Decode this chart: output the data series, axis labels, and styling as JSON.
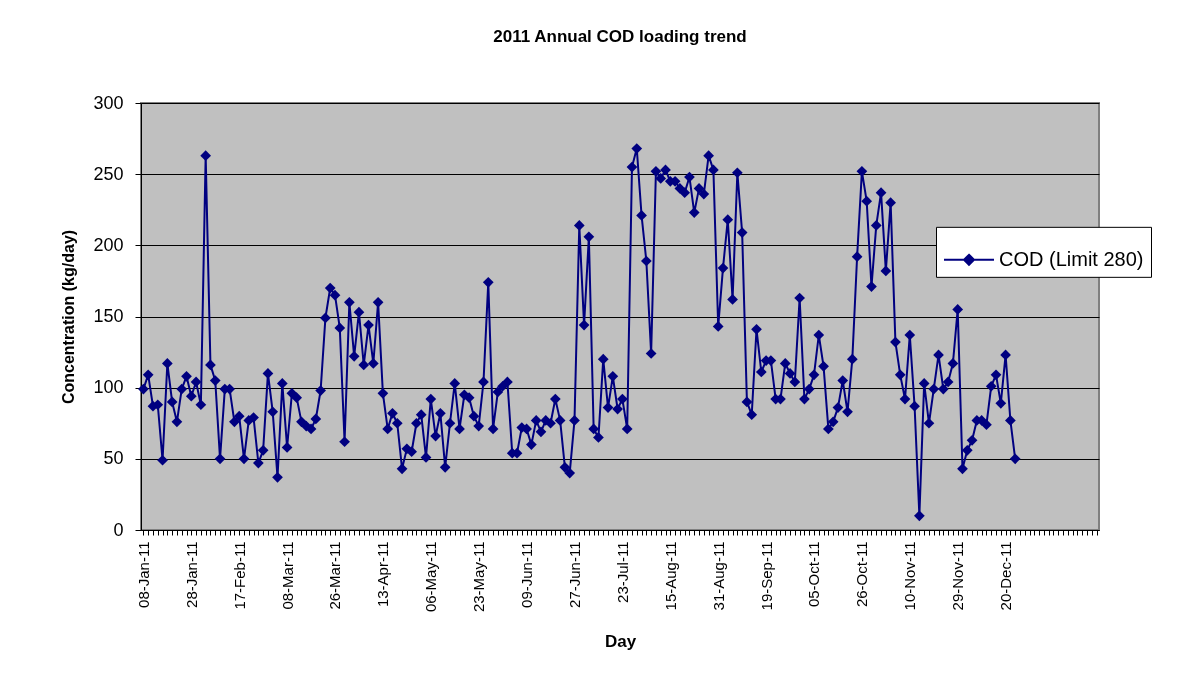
{
  "chart_data": {
    "type": "line",
    "title": "2011 Annual COD loading trend",
    "xlabel": "Day",
    "ylabel": "Concentration (kg/day)",
    "categories": [
      "08-Jan-11",
      null,
      null,
      null,
      null,
      null,
      null,
      null,
      null,
      null,
      "28-Jan-11",
      null,
      null,
      null,
      null,
      null,
      null,
      null,
      null,
      null,
      "17-Feb-11",
      null,
      null,
      null,
      null,
      null,
      null,
      null,
      null,
      null,
      "08-Mar-11",
      null,
      null,
      null,
      null,
      null,
      null,
      null,
      null,
      null,
      "26-Mar-11",
      null,
      null,
      null,
      null,
      null,
      null,
      null,
      null,
      null,
      "13-Apr-11",
      null,
      null,
      null,
      null,
      null,
      null,
      null,
      null,
      null,
      "06-May-11",
      null,
      null,
      null,
      null,
      null,
      null,
      null,
      null,
      null,
      "23-May-11",
      null,
      null,
      null,
      null,
      null,
      null,
      null,
      null,
      null,
      "09-Jun-11",
      null,
      null,
      null,
      null,
      null,
      null,
      null,
      null,
      null,
      "27-Jun-11",
      null,
      null,
      null,
      null,
      null,
      null,
      null,
      null,
      null,
      "23-Jul-11",
      null,
      null,
      null,
      null,
      null,
      null,
      null,
      null,
      null,
      "15-Aug-11",
      null,
      null,
      null,
      null,
      null,
      null,
      null,
      null,
      null,
      "31-Aug-11",
      null,
      null,
      null,
      null,
      null,
      null,
      null,
      null,
      null,
      "19-Sep-11",
      null,
      null,
      null,
      null,
      null,
      null,
      null,
      null,
      null,
      "05-Oct-11",
      null,
      null,
      null,
      null,
      null,
      null,
      null,
      null,
      null,
      "26-Oct-11",
      null,
      null,
      null,
      null,
      null,
      null,
      null,
      null,
      null,
      "10-Nov-11",
      null,
      null,
      null,
      null,
      null,
      null,
      null,
      null,
      null,
      "29-Nov-11",
      null,
      null,
      null,
      null,
      null,
      null,
      null,
      null,
      null,
      "20-Dec-11",
      null,
      null,
      null,
      null,
      null,
      null,
      null,
      null,
      null,
      null,
      null,
      null,
      null,
      null,
      null,
      null,
      null,
      null,
      null
    ],
    "series": [
      {
        "name": "COD (Limit 280)",
        "color": "#000080",
        "values": [
          99,
          109,
          87,
          88,
          49,
          117,
          90,
          76,
          99,
          108,
          94,
          104,
          88,
          263,
          116,
          105,
          50,
          99,
          99,
          76,
          80,
          50,
          77,
          79,
          47,
          56,
          110,
          83,
          37,
          103,
          58,
          96,
          93,
          76,
          73,
          71,
          78,
          98,
          149,
          170,
          165,
          142,
          62,
          160,
          122,
          153,
          116,
          144,
          117,
          160,
          96,
          71,
          82,
          75,
          43,
          57,
          55,
          75,
          81,
          51,
          92,
          66,
          82,
          44,
          75,
          103,
          71,
          95,
          93,
          80,
          73,
          104,
          174,
          71,
          97,
          101,
          104,
          54,
          54,
          72,
          71,
          60,
          77,
          69,
          77,
          75,
          92,
          77,
          44,
          40,
          77,
          214,
          144,
          206,
          71,
          65,
          120,
          86,
          108,
          85,
          92,
          71,
          255,
          268,
          221,
          189,
          124,
          252,
          247,
          253,
          245,
          245,
          240,
          237,
          248,
          223,
          240,
          236,
          263,
          253,
          143,
          184,
          218,
          162,
          251,
          209,
          90,
          81,
          141,
          111,
          119,
          119,
          92,
          92,
          117,
          110,
          104,
          163,
          92,
          99,
          109,
          137,
          115,
          71,
          76,
          86,
          105,
          83,
          120,
          192,
          252,
          231,
          171,
          214,
          237,
          182,
          230,
          132,
          109,
          92,
          137,
          87,
          10,
          103,
          75,
          99,
          123,
          99,
          104,
          117,
          155,
          43,
          56,
          63,
          77,
          77,
          74,
          101,
          109,
          89,
          123,
          77,
          50,
          null,
          null,
          null,
          null,
          null,
          null,
          null,
          null,
          null,
          null,
          null,
          null,
          null,
          null,
          null,
          null,
          null
        ]
      }
    ],
    "ylim": [
      0,
      300
    ],
    "yticks": [
      0,
      50,
      100,
      150,
      200,
      250,
      300
    ],
    "grid": "y",
    "legend": "right",
    "marker": "diamond",
    "line_style": "solid"
  }
}
